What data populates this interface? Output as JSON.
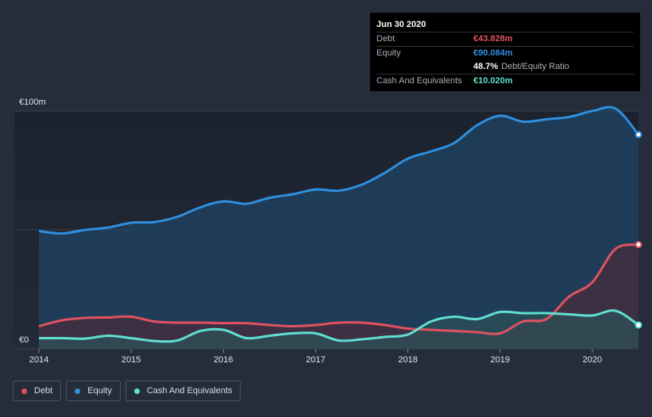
{
  "chart_data": {
    "type": "area",
    "y_axis_labels": [
      "€100m",
      "€0"
    ],
    "ylim": [
      0,
      100
    ],
    "x_ticks": [
      {
        "label": "2014",
        "x": 2014.0
      },
      {
        "label": "2015",
        "x": 2015.0
      },
      {
        "label": "2016",
        "x": 2016.0
      },
      {
        "label": "2017",
        "x": 2017.0
      },
      {
        "label": "2018",
        "x": 2018.0
      },
      {
        "label": "2019",
        "x": 2019.0
      },
      {
        "label": "2020",
        "x": 2020.0
      }
    ],
    "xlim": [
      2014.0,
      2020.5
    ],
    "series": [
      {
        "name": "Equity",
        "color": "#2f8fde",
        "fill": "#1f4466",
        "points": [
          [
            2014.0,
            49.5
          ],
          [
            2014.25,
            48.5
          ],
          [
            2014.5,
            50
          ],
          [
            2014.75,
            51
          ],
          [
            2015.0,
            53
          ],
          [
            2015.25,
            53.3
          ],
          [
            2015.5,
            55.5
          ],
          [
            2015.75,
            59.5
          ],
          [
            2016.0,
            62
          ],
          [
            2016.25,
            61
          ],
          [
            2016.5,
            63.5
          ],
          [
            2016.75,
            65
          ],
          [
            2017.0,
            67
          ],
          [
            2017.25,
            66.5
          ],
          [
            2017.5,
            69
          ],
          [
            2017.75,
            74
          ],
          [
            2018.0,
            80
          ],
          [
            2018.25,
            83
          ],
          [
            2018.5,
            86.5
          ],
          [
            2018.75,
            94
          ],
          [
            2019.0,
            98
          ],
          [
            2019.25,
            95.5
          ],
          [
            2019.5,
            96.5
          ],
          [
            2019.75,
            97.5
          ],
          [
            2020.0,
            100
          ],
          [
            2020.25,
            101
          ],
          [
            2020.5,
            90.084
          ]
        ]
      },
      {
        "name": "Debt",
        "color": "#e0525f",
        "fill": "#4a2c3c",
        "points": [
          [
            2014.0,
            9.5
          ],
          [
            2014.25,
            12
          ],
          [
            2014.5,
            13
          ],
          [
            2014.75,
            13.2
          ],
          [
            2015.0,
            13.5
          ],
          [
            2015.25,
            11.5
          ],
          [
            2015.5,
            11
          ],
          [
            2015.75,
            11
          ],
          [
            2016.0,
            10.8
          ],
          [
            2016.25,
            10.8
          ],
          [
            2016.5,
            10
          ],
          [
            2016.75,
            9.5
          ],
          [
            2017.0,
            10
          ],
          [
            2017.25,
            11
          ],
          [
            2017.5,
            11
          ],
          [
            2017.75,
            10
          ],
          [
            2018.0,
            8.5
          ],
          [
            2018.25,
            8
          ],
          [
            2018.5,
            7.5
          ],
          [
            2018.75,
            7
          ],
          [
            2019.0,
            6.5
          ],
          [
            2019.25,
            11.5
          ],
          [
            2019.5,
            12.5
          ],
          [
            2019.75,
            22
          ],
          [
            2020.0,
            28
          ],
          [
            2020.25,
            42
          ],
          [
            2020.5,
            43.828
          ]
        ]
      },
      {
        "name": "Cash And Equivalents",
        "color": "#5fe0d2",
        "fill": "#2e5058",
        "points": [
          [
            2014.0,
            4.5
          ],
          [
            2014.25,
            4.5
          ],
          [
            2014.5,
            4.3
          ],
          [
            2014.75,
            5.5
          ],
          [
            2015.0,
            4.5
          ],
          [
            2015.25,
            3.3
          ],
          [
            2015.5,
            3.5
          ],
          [
            2015.75,
            7.5
          ],
          [
            2016.0,
            8
          ],
          [
            2016.25,
            4.5
          ],
          [
            2016.5,
            5.5
          ],
          [
            2016.75,
            6.5
          ],
          [
            2017.0,
            6.5
          ],
          [
            2017.25,
            3.5
          ],
          [
            2017.5,
            4
          ],
          [
            2017.75,
            5
          ],
          [
            2018.0,
            6
          ],
          [
            2018.25,
            11.5
          ],
          [
            2018.5,
            13.5
          ],
          [
            2018.75,
            12.5
          ],
          [
            2019.0,
            15.5
          ],
          [
            2019.25,
            15
          ],
          [
            2019.5,
            15
          ],
          [
            2019.75,
            14.5
          ],
          [
            2020.0,
            14
          ],
          [
            2020.25,
            16
          ],
          [
            2020.5,
            10.02
          ]
        ]
      }
    ]
  },
  "tooltip": {
    "date": "Jun 30 2020",
    "rows": [
      {
        "label": "Debt",
        "value": "€43.828m",
        "color": "#e0525f"
      },
      {
        "label": "Equity",
        "value": "€90.084m",
        "color": "#2f8fde"
      },
      {
        "ratio_value": "48.7%",
        "ratio_text": "Debt/Equity Ratio"
      },
      {
        "label": "Cash And Equivalents",
        "value": "€10.020m",
        "color": "#5fe0d2"
      }
    ]
  },
  "legend": [
    {
      "label": "Debt",
      "color": "#e0525f"
    },
    {
      "label": "Equity",
      "color": "#2f8fde"
    },
    {
      "label": "Cash And Equivalents",
      "color": "#5fe0d2"
    }
  ]
}
